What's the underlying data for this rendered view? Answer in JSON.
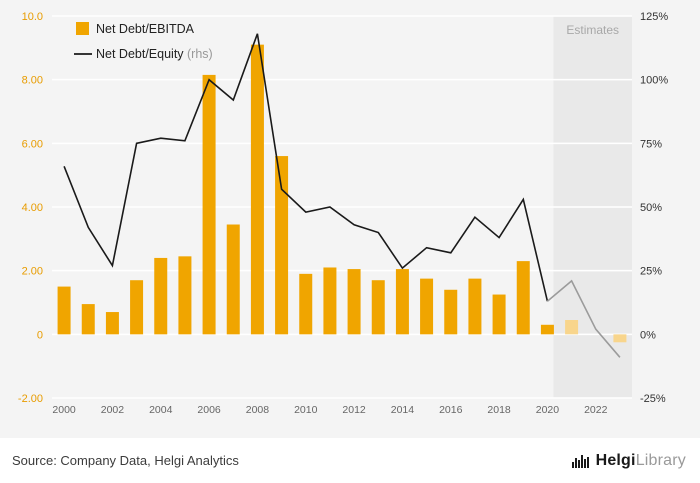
{
  "footer": {
    "source": "Source: Company Data, Helgi Analytics",
    "logo_primary": "Helgi",
    "logo_secondary": "Library"
  },
  "chart_data": {
    "type": "bar",
    "title": "",
    "categories": [
      2000,
      2001,
      2002,
      2003,
      2004,
      2005,
      2006,
      2007,
      2008,
      2009,
      2010,
      2011,
      2012,
      2013,
      2014,
      2015,
      2016,
      2017,
      2018,
      2019,
      2020,
      2021,
      2022,
      2023
    ],
    "series": [
      {
        "name": "Net Debt/EBITDA",
        "type": "bar",
        "axis": "left",
        "values": [
          1.5,
          0.95,
          0.7,
          1.7,
          2.4,
          2.45,
          8.15,
          3.45,
          9.1,
          5.6,
          1.9,
          2.1,
          2.05,
          1.7,
          2.05,
          1.75,
          1.4,
          1.75,
          1.25,
          2.3,
          0.3,
          0.45,
          0.0,
          -0.25
        ]
      },
      {
        "name": "Net Debt/Equity",
        "suffix": "(rhs)",
        "type": "line",
        "axis": "right",
        "values": [
          66,
          42,
          27,
          75,
          77,
          76,
          100,
          92,
          118,
          57,
          48,
          50,
          43,
          40,
          26,
          34,
          32,
          46,
          38,
          53,
          13,
          21,
          2,
          -9
        ]
      }
    ],
    "left_axis": {
      "min": -2,
      "max": 10,
      "tick_values": [
        10,
        8,
        6,
        4,
        2,
        0,
        -2
      ],
      "ticks": [
        "10.0",
        "8.00",
        "6.00",
        "4.00",
        "2.00",
        "0",
        "-2.00"
      ]
    },
    "right_axis": {
      "min": -25,
      "max": 125,
      "tick_values": [
        125,
        100,
        75,
        50,
        25,
        0,
        -25
      ],
      "ticks": [
        "125%",
        "100%",
        "75%",
        "50%",
        "25%",
        "0%",
        "-25%"
      ]
    },
    "estimates": {
      "label": "Estimates",
      "start_index": 21
    },
    "legend_position": "top-left",
    "grid": true,
    "colors": {
      "bar": "#F0A500",
      "bar_estimate": "#F8D58C",
      "line": "#1A1A1A",
      "line_estimate": "#9B9B9B",
      "left_axis": "#E89C00",
      "right_axis": "#333333",
      "x_axis": "#666666",
      "estimates_band": "#E9E9E9",
      "estimates_label": "#A8A8A8",
      "background": "#F4F4F4",
      "grid": "#FFFFFF",
      "legend_text": "#222222",
      "legend_muted": "#999999"
    }
  }
}
